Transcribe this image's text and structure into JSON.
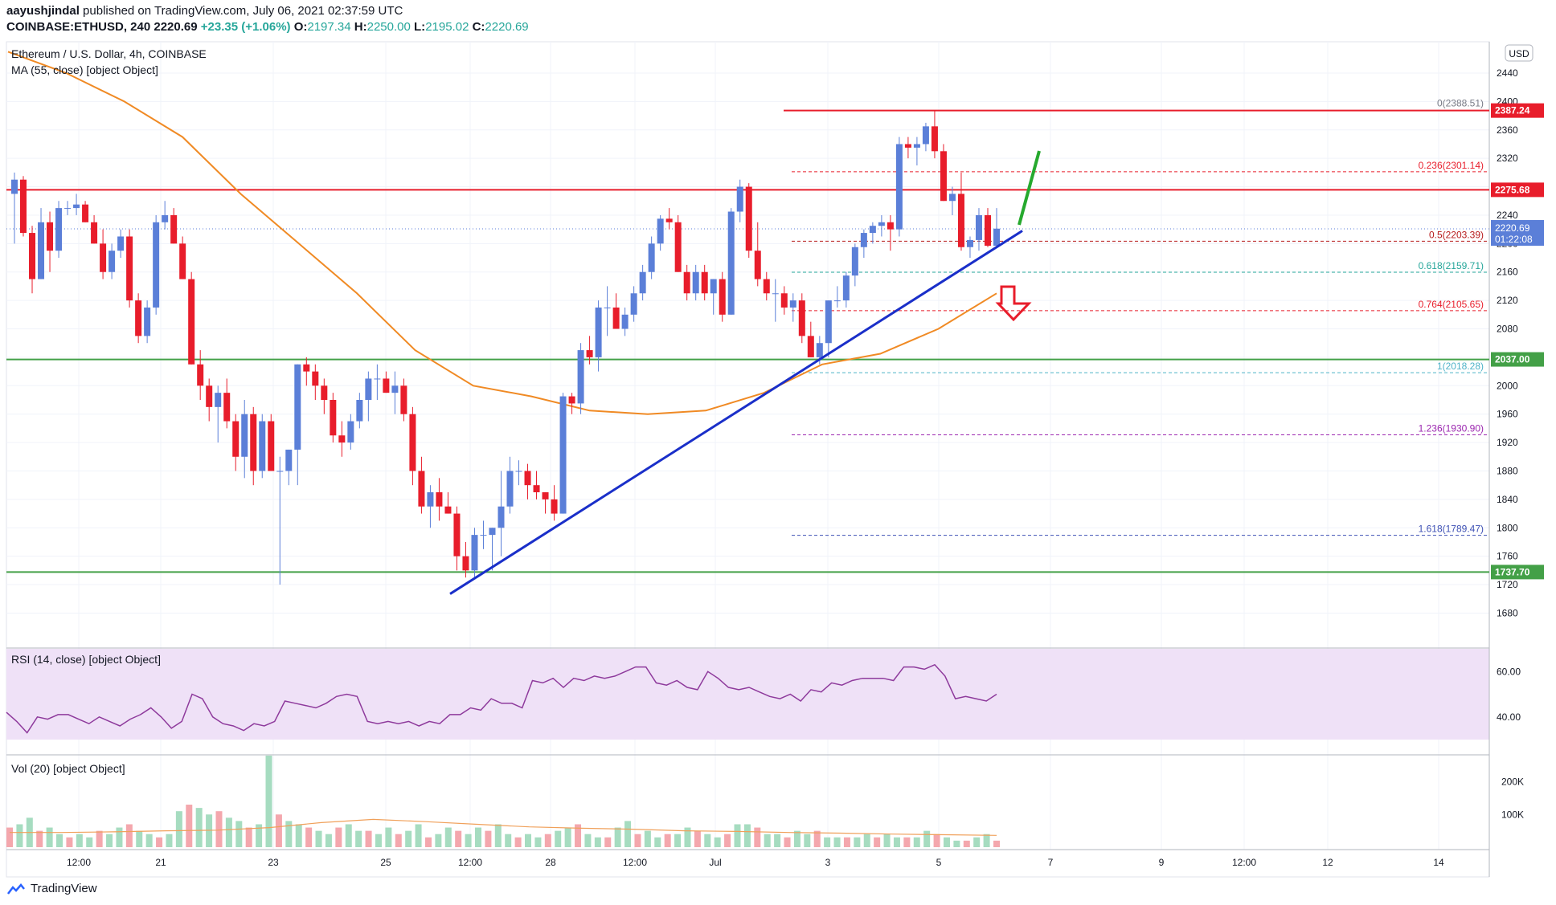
{
  "header": {
    "publisher": "aayushjindal",
    "published_text": "published on TradingView.com, July 06, 2021 02:37:59 UTC",
    "symbol": "COINBASE:ETHUSD, 240",
    "last": "2220.69",
    "change": "+23.35 (+1.06%)",
    "o_label": "O:",
    "o": "2197.34",
    "h_label": "H:",
    "h": "2250.00",
    "l_label": "L:",
    "l": "2195.02",
    "c_label": "C:",
    "c": "2220.69"
  },
  "legend": {
    "title": "Ethereum / U.S. Dollar, 4h, COINBASE",
    "ma": "MA (55, close) [object Object]",
    "rsi": "RSI (14, close) [object Object]",
    "vol": "Vol (20) [object Object]"
  },
  "currency_button": "USD",
  "footer_logo": "TradingView",
  "colors": {
    "up": "#5b7fd8",
    "down": "#e81d2b",
    "ma": "#f08a24",
    "trend": "#1a2fc9",
    "resistance": "#e81d2b",
    "support": "#43a047",
    "rsi": "#8e3a9c",
    "rsi_band": "#efe1f7",
    "vol_up": "#a6dcc0",
    "vol_down": "#f4a7ad",
    "vol_ma": "#f0a05a"
  },
  "chart_data": [
    {
      "type": "candlestick",
      "title": "Ethereum / U.S. Dollar, 4h, COINBASE",
      "x_tick_labels": [
        "12:00",
        "21",
        "23",
        "25",
        "12:00",
        "28",
        "12:00",
        "Jul",
        "3",
        "5",
        "7",
        "9",
        "12:00",
        "12",
        "14"
      ],
      "y_ticks": [
        1680,
        1720,
        1760,
        1800,
        1840,
        1880,
        1920,
        1960,
        2000,
        2040,
        2080,
        2120,
        2160,
        2200,
        2240,
        2280,
        2320,
        2360,
        2400,
        2440
      ],
      "ylim": [
        1650,
        2475
      ],
      "candles": [
        [
          2270,
          2300,
          2200,
          2290
        ],
        [
          2290,
          2295,
          2210,
          2215
        ],
        [
          2215,
          2225,
          2130,
          2150
        ],
        [
          2150,
          2250,
          2150,
          2230
        ],
        [
          2230,
          2245,
          2160,
          2190
        ],
        [
          2190,
          2260,
          2180,
          2250
        ],
        [
          2250,
          2260,
          2240,
          2250
        ],
        [
          2250,
          2270,
          2240,
          2255
        ],
        [
          2255,
          2260,
          2230,
          2230
        ],
        [
          2230,
          2240,
          2200,
          2200
        ],
        [
          2200,
          2220,
          2150,
          2160
        ],
        [
          2160,
          2200,
          2150,
          2190
        ],
        [
          2190,
          2220,
          2180,
          2210
        ],
        [
          2210,
          2220,
          2110,
          2120
        ],
        [
          2120,
          2130,
          2060,
          2070
        ],
        [
          2070,
          2120,
          2060,
          2110
        ],
        [
          2110,
          2240,
          2100,
          2230
        ],
        [
          2230,
          2260,
          2220,
          2240
        ],
        [
          2240,
          2250,
          2200,
          2200
        ],
        [
          2200,
          2210,
          2150,
          2150
        ],
        [
          2150,
          2160,
          2030,
          2030
        ],
        [
          2030,
          2050,
          1980,
          2000
        ],
        [
          2000,
          2010,
          1950,
          1970
        ],
        [
          1970,
          2000,
          1920,
          1990
        ],
        [
          1990,
          2010,
          1940,
          1950
        ],
        [
          1950,
          1960,
          1880,
          1900
        ],
        [
          1900,
          1980,
          1870,
          1960
        ],
        [
          1960,
          1970,
          1860,
          1880
        ],
        [
          1880,
          1960,
          1870,
          1950
        ],
        [
          1950,
          1960,
          1880,
          1880
        ],
        [
          1880,
          1900,
          1720,
          1880
        ],
        [
          1880,
          1910,
          1860,
          1910
        ],
        [
          1910,
          2030,
          1860,
          2030
        ],
        [
          2030,
          2040,
          2000,
          2020
        ],
        [
          2020,
          2030,
          1980,
          2000
        ],
        [
          2000,
          2010,
          1960,
          1980
        ],
        [
          1980,
          1990,
          1920,
          1930
        ],
        [
          1930,
          1950,
          1900,
          1920
        ],
        [
          1920,
          1960,
          1910,
          1950
        ],
        [
          1950,
          1990,
          1940,
          1980
        ],
        [
          1980,
          2020,
          1950,
          2010
        ],
        [
          2010,
          2030,
          1980,
          2010
        ],
        [
          2010,
          2020,
          1990,
          1990
        ],
        [
          1990,
          2020,
          1960,
          2000
        ],
        [
          2000,
          2010,
          1950,
          1960
        ],
        [
          1960,
          1970,
          1860,
          1880
        ],
        [
          1880,
          1900,
          1820,
          1830
        ],
        [
          1830,
          1860,
          1800,
          1850
        ],
        [
          1850,
          1870,
          1810,
          1830
        ],
        [
          1830,
          1850,
          1820,
          1820
        ],
        [
          1820,
          1830,
          1740,
          1760
        ],
        [
          1760,
          1780,
          1730,
          1740
        ],
        [
          1740,
          1800,
          1730,
          1790
        ],
        [
          1790,
          1810,
          1770,
          1790
        ],
        [
          1790,
          1800,
          1740,
          1800
        ],
        [
          1800,
          1880,
          1760,
          1830
        ],
        [
          1830,
          1900,
          1820,
          1880
        ],
        [
          1880,
          1895,
          1860,
          1880
        ],
        [
          1880,
          1890,
          1840,
          1860
        ],
        [
          1860,
          1880,
          1840,
          1850
        ],
        [
          1850,
          1850,
          1820,
          1840
        ],
        [
          1840,
          1860,
          1810,
          1820
        ],
        [
          1820,
          1990,
          1820,
          1985
        ],
        [
          1985,
          1990,
          1960,
          1975
        ],
        [
          1975,
          2060,
          1960,
          2050
        ],
        [
          2050,
          2070,
          2030,
          2040
        ],
        [
          2040,
          2120,
          2020,
          2110
        ],
        [
          2110,
          2140,
          2070,
          2110
        ],
        [
          2110,
          2130,
          2080,
          2080
        ],
        [
          2080,
          2110,
          2070,
          2100
        ],
        [
          2100,
          2140,
          2090,
          2130
        ],
        [
          2130,
          2170,
          2120,
          2160
        ],
        [
          2160,
          2210,
          2150,
          2200
        ],
        [
          2200,
          2240,
          2190,
          2235
        ],
        [
          2235,
          2250,
          2220,
          2230
        ],
        [
          2230,
          2240,
          2160,
          2160
        ],
        [
          2160,
          2170,
          2120,
          2130
        ],
        [
          2130,
          2170,
          2120,
          2160
        ],
        [
          2160,
          2170,
          2120,
          2130
        ],
        [
          2130,
          2150,
          2100,
          2150
        ],
        [
          2150,
          2160,
          2090,
          2100
        ],
        [
          2100,
          2250,
          2100,
          2245
        ],
        [
          2245,
          2290,
          2230,
          2280
        ],
        [
          2280,
          2285,
          2180,
          2190
        ],
        [
          2190,
          2230,
          2140,
          2150
        ],
        [
          2150,
          2160,
          2120,
          2130
        ],
        [
          2130,
          2150,
          2090,
          2130
        ],
        [
          2130,
          2140,
          2100,
          2110
        ],
        [
          2110,
          2130,
          2090,
          2120
        ],
        [
          2120,
          2130,
          2060,
          2070
        ],
        [
          2070,
          2090,
          2040,
          2040
        ],
        [
          2040,
          2070,
          2030,
          2060
        ],
        [
          2060,
          2120,
          2040,
          2120
        ],
        [
          2120,
          2140,
          2110,
          2120
        ],
        [
          2120,
          2160,
          2110,
          2155
        ],
        [
          2155,
          2200,
          2140,
          2195
        ],
        [
          2195,
          2220,
          2180,
          2215
        ],
        [
          2215,
          2230,
          2200,
          2225
        ],
        [
          2225,
          2240,
          2210,
          2230
        ],
        [
          2230,
          2240,
          2190,
          2220
        ],
        [
          2220,
          2350,
          2210,
          2340
        ],
        [
          2340,
          2350,
          2320,
          2335
        ],
        [
          2335,
          2350,
          2310,
          2340
        ],
        [
          2340,
          2370,
          2330,
          2365
        ],
        [
          2365,
          2388,
          2320,
          2330
        ],
        [
          2330,
          2340,
          2260,
          2260
        ],
        [
          2260,
          2280,
          2240,
          2270
        ],
        [
          2270,
          2300,
          2190,
          2195
        ],
        [
          2195,
          2210,
          2180,
          2205
        ],
        [
          2205,
          2250,
          2190,
          2240
        ],
        [
          2240,
          2250,
          2195,
          2197
        ],
        [
          2197,
          2250,
          2195,
          2221
        ]
      ],
      "ma_label": "MA (55, close)",
      "ma_values": [
        2470,
        2440,
        2400,
        2350,
        2270,
        2200,
        2130,
        2050,
        2000,
        1985,
        1965,
        1960,
        1965,
        1990,
        2030,
        2045,
        2080,
        2130
      ],
      "horizontal_levels": [
        {
          "label": "2387.24",
          "value": 2387.24,
          "kind": "resistance"
        },
        {
          "label": "2275.68",
          "value": 2275.68,
          "kind": "resistance"
        },
        {
          "label": "2037.00",
          "value": 2037.0,
          "kind": "support"
        },
        {
          "label": "1737.70",
          "value": 1737.7,
          "kind": "support"
        }
      ],
      "current_price": {
        "label": "2220.69",
        "sub": "01:22:08",
        "value": 2220.69
      },
      "fibonacci": [
        {
          "label": "0(2388.51)",
          "value": 2388.51,
          "color": "#787b86"
        },
        {
          "label": "0.236(2301.14)",
          "value": 2301.14,
          "color": "#e81d2b"
        },
        {
          "label": "0.5(2203.39)",
          "value": 2203.39,
          "color": "#b71c1c"
        },
        {
          "label": "0.618(2159.71)",
          "value": 2159.71,
          "color": "#26a69a"
        },
        {
          "label": "0.764(2105.65)",
          "value": 2105.65,
          "color": "#e81d2b"
        },
        {
          "label": "1(2018.28)",
          "value": 2018.28,
          "color": "#4fb3c8"
        },
        {
          "label": "1.236(1930.90)",
          "value": 1930.9,
          "color": "#9c27b0"
        },
        {
          "label": "1.618(1789.47)",
          "value": 1789.47,
          "color": "#3f51b5"
        }
      ],
      "trendline": {
        "from": [
          1.22,
          1707
        ],
        "to": [
          2.1,
          2218
        ]
      }
    },
    {
      "type": "line",
      "title": "RSI (14, close)",
      "y_ticks": [
        40,
        60
      ],
      "ylim": [
        27,
        70
      ],
      "band": [
        30,
        70
      ],
      "values": [
        42,
        38,
        33,
        40,
        39,
        41,
        41,
        39,
        37,
        40,
        38,
        36,
        39,
        41,
        44,
        40,
        35,
        38,
        50,
        48,
        40,
        37,
        36,
        34,
        37,
        36,
        38,
        47,
        46,
        45,
        44,
        46,
        49,
        50,
        49,
        38,
        37,
        38,
        37,
        38,
        36,
        38,
        37,
        41,
        41,
        44,
        43,
        48,
        46,
        46,
        44,
        56,
        55,
        57,
        53,
        57,
        56,
        58,
        57,
        58,
        60,
        62,
        62,
        55,
        54,
        56,
        53,
        52,
        60,
        57,
        53,
        52,
        53,
        51,
        49,
        48,
        50,
        47,
        52,
        51,
        55,
        54,
        56,
        57,
        57,
        57,
        56,
        62,
        62,
        61,
        63,
        58,
        48,
        49,
        48,
        47,
        50
      ]
    },
    {
      "type": "bar",
      "title": "Vol (20)",
      "y_ticks": [
        "100K",
        "200K"
      ],
      "ylim": [
        0,
        270000
      ],
      "values": [
        60000,
        70000,
        90000,
        50000,
        60000,
        40000,
        30000,
        40000,
        30000,
        50000,
        40000,
        60000,
        70000,
        50000,
        40000,
        30000,
        40000,
        110000,
        130000,
        120000,
        100000,
        110000,
        90000,
        80000,
        60000,
        70000,
        280000,
        100000,
        80000,
        70000,
        60000,
        50000,
        40000,
        60000,
        70000,
        50000,
        50000,
        40000,
        60000,
        40000,
        50000,
        70000,
        30000,
        40000,
        60000,
        50000,
        40000,
        60000,
        50000,
        70000,
        40000,
        30000,
        40000,
        30000,
        40000,
        50000,
        60000,
        70000,
        40000,
        30000,
        30000,
        60000,
        80000,
        40000,
        50000,
        30000,
        40000,
        40000,
        60000,
        50000,
        40000,
        30000,
        40000,
        70000,
        70000,
        60000,
        40000,
        40000,
        30000,
        50000,
        40000,
        50000,
        30000,
        30000,
        30000,
        30000,
        40000,
        30000,
        40000,
        30000,
        30000,
        30000,
        50000,
        40000,
        30000,
        20000,
        20000,
        30000,
        40000,
        20000
      ],
      "ma_values": [
        45000,
        45000,
        47000,
        50000,
        52000,
        60000,
        75000,
        85000,
        78000,
        70000,
        62000,
        58000,
        55000,
        50000,
        48000,
        45000,
        43000,
        40000,
        38000,
        36000
      ]
    }
  ]
}
